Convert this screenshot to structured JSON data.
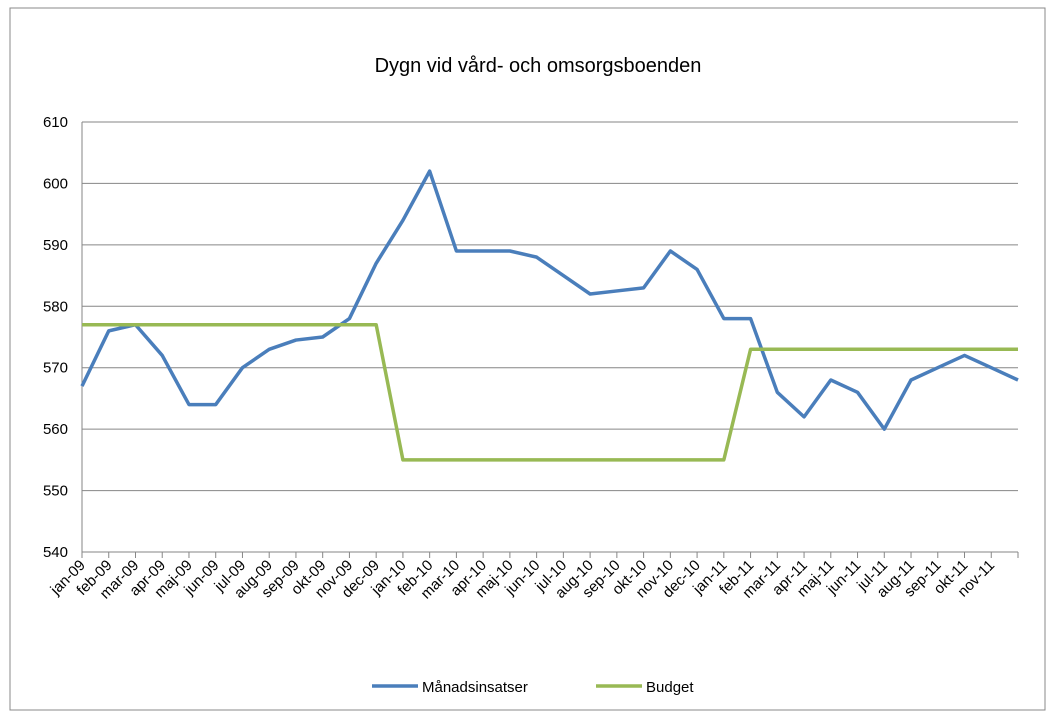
{
  "chart_data": {
    "type": "line",
    "title": "Dygn vid vård- och omsorgsboenden",
    "categories": [
      "jan-09",
      "feb-09",
      "mar-09",
      "apr-09",
      "maj-09",
      "jun-09",
      "jul-09",
      "aug-09",
      "sep-09",
      "okt-09",
      "nov-09",
      "dec-09",
      "jan-10",
      "feb-10",
      "mar-10",
      "apr-10",
      "maj-10",
      "jun-10",
      "jul-10",
      "aug-10",
      "sep-10",
      "okt-10",
      "nov-10",
      "dec-10",
      "jan-11",
      "feb-11",
      "mar-11",
      "apr-11",
      "maj-11",
      "jun-11",
      "jul-11",
      "aug-11",
      "sep-11",
      "okt-11",
      "nov-11",
      null
    ],
    "series": [
      {
        "name": "Månadsinsatser",
        "color": "#4a7ebb",
        "values": [
          567,
          576,
          577,
          572,
          564,
          564,
          570,
          573,
          574.5,
          575,
          578,
          587,
          594,
          602,
          589,
          589,
          589,
          588,
          585,
          582,
          582.5,
          583,
          589,
          586,
          578,
          578,
          566,
          562,
          568,
          566,
          560,
          568,
          570,
          572,
          570,
          568
        ]
      },
      {
        "name": "Budget",
        "color": "#98b954",
        "values": [
          577,
          577,
          577,
          577,
          577,
          577,
          577,
          577,
          577,
          577,
          577,
          577,
          555,
          555,
          555,
          555,
          555,
          555,
          555,
          555,
          555,
          555,
          555,
          555,
          555,
          573,
          573,
          573,
          573,
          573,
          573,
          573,
          573,
          573,
          573,
          573
        ]
      }
    ],
    "ylim": [
      540,
      610
    ],
    "yticks": [
      540,
      550,
      560,
      570,
      580,
      590,
      600,
      610
    ],
    "grid": true,
    "legend": "bottom"
  }
}
